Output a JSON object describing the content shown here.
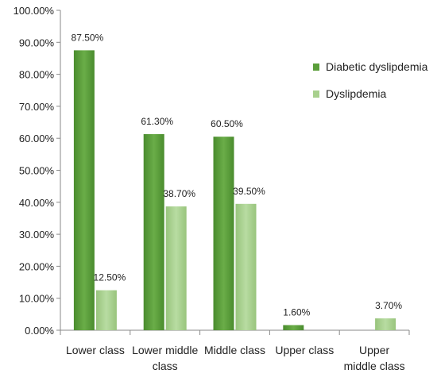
{
  "chart_data": {
    "type": "bar",
    "title": "",
    "xlabel": "",
    "ylabel": "",
    "ylim": [
      0,
      100
    ],
    "yticks": [
      "0.00%",
      "10.00%",
      "20.00%",
      "30.00%",
      "40.00%",
      "50.00%",
      "60.00%",
      "70.00%",
      "80.00%",
      "90.00%",
      "100.00%"
    ],
    "categories": [
      [
        "Lower class"
      ],
      [
        "Lower middle",
        "class"
      ],
      [
        "Middle class"
      ],
      [
        "Upper class"
      ],
      [
        "Upper",
        "middle class"
      ]
    ],
    "series": [
      {
        "name": "Diabetic dyslipdemia",
        "color": "#5a9e3a",
        "values": [
          87.5,
          61.3,
          60.5,
          1.6,
          null
        ],
        "labels": [
          "87.50%",
          "61.30%",
          "60.50%",
          "1.60%",
          ""
        ]
      },
      {
        "name": "Dyslipdemia",
        "color": "#a8d08d",
        "values": [
          12.5,
          38.7,
          39.5,
          null,
          3.7
        ],
        "labels": [
          "12.50%",
          "38.70%",
          "39.50%",
          "",
          "3.70%"
        ]
      }
    ],
    "legend_position": "right",
    "grid": false
  }
}
